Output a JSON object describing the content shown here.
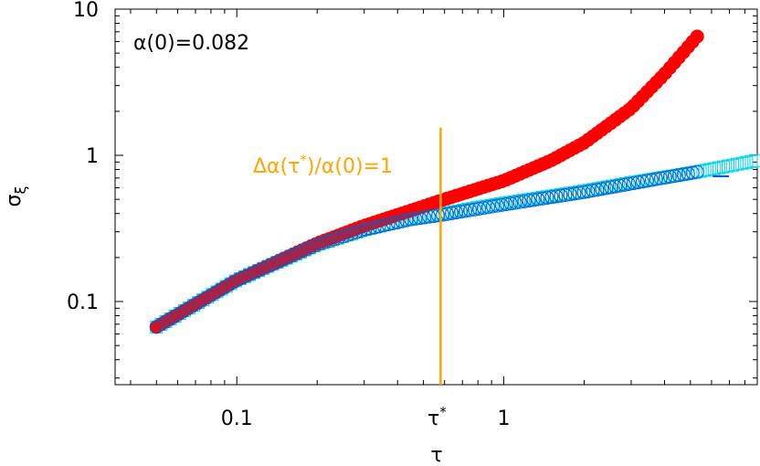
{
  "chart_data": {
    "type": "scatter",
    "xscale": "log",
    "yscale": "log",
    "xlim": [
      0.035,
      8.9
    ],
    "ylim": [
      0.027,
      10
    ],
    "title": "",
    "xlabel": "τ",
    "ylabel": "σ",
    "ylabel_sub": "ξ",
    "x_ticks": [
      {
        "value": 0.1,
        "label": "0.1"
      },
      {
        "value": 1,
        "label": "1"
      }
    ],
    "y_ticks": [
      {
        "value": 0.1,
        "label": "0.1"
      },
      {
        "value": 1,
        "label": "1"
      },
      {
        "value": 10,
        "label": "10"
      }
    ],
    "annotation": {
      "text": "α(0)=0.082"
    },
    "vline": {
      "x": 0.58,
      "y_range": [
        0.32,
        1.55
      ],
      "label_main": "Δα(τ",
      "label_sup": "*",
      "label_tail": ")/α(0)=1",
      "tick_label": "τ",
      "tick_label_sup": "*",
      "color": "#ffa500"
    },
    "series": [
      {
        "marker": "filled-circle",
        "color": "#ff0000",
        "edge": "#ff0000",
        "x_start": 0.05,
        "x_end": 5.3,
        "count": 120,
        "points": [
          [
            0.05,
            0.067
          ],
          [
            0.1,
            0.14
          ],
          [
            0.2,
            0.25
          ],
          [
            0.3,
            0.33
          ],
          [
            0.45,
            0.42
          ],
          [
            0.58,
            0.49
          ],
          [
            0.8,
            0.59
          ],
          [
            1.0,
            0.67
          ],
          [
            1.5,
            0.92
          ],
          [
            2.0,
            1.22
          ],
          [
            3.0,
            2.1
          ],
          [
            4.0,
            3.6
          ],
          [
            5.3,
            6.5
          ]
        ]
      },
      {
        "marker": "open-square",
        "color": "none",
        "edge": "#00d2e6",
        "x_start": 0.05,
        "x_end": 8.8,
        "count": 130,
        "points": [
          [
            0.05,
            0.067
          ],
          [
            0.1,
            0.14
          ],
          [
            0.2,
            0.245
          ],
          [
            0.3,
            0.31
          ],
          [
            0.45,
            0.37
          ],
          [
            0.58,
            0.395
          ],
          [
            0.8,
            0.44
          ],
          [
            1.0,
            0.47
          ],
          [
            2.0,
            0.57
          ],
          [
            3.0,
            0.65
          ],
          [
            5.3,
            0.77
          ],
          [
            8.8,
            0.92
          ]
        ]
      },
      {
        "marker": "open-circle",
        "color": "none",
        "edge": "#0060d0",
        "x_start": 0.05,
        "x_end": 5.3,
        "count": 120,
        "points": [
          [
            0.05,
            0.067
          ],
          [
            0.1,
            0.14
          ],
          [
            0.2,
            0.245
          ],
          [
            0.3,
            0.31
          ],
          [
            0.45,
            0.365
          ],
          [
            0.58,
            0.39
          ],
          [
            0.8,
            0.43
          ],
          [
            1.0,
            0.46
          ],
          [
            2.0,
            0.56
          ],
          [
            3.0,
            0.64
          ],
          [
            5.3,
            0.77
          ]
        ]
      }
    ],
    "stray_mark": {
      "x": 6.5,
      "y": 0.72,
      "color": "#0050d0"
    }
  }
}
